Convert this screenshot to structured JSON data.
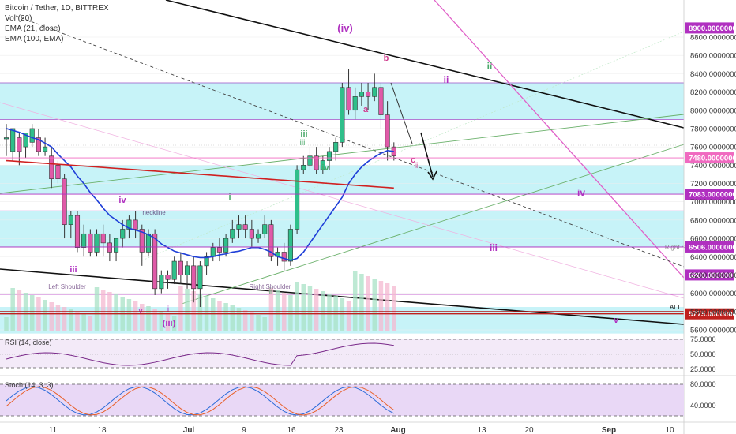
{
  "header": {
    "symbol": "Bitcoin / Tether, 1D, BITTREX",
    "lines": [
      "Vol (20)",
      "EMA (21, close)",
      "EMA (100, EMA)"
    ]
  },
  "chart_data": {
    "type": "candlestick",
    "x_ticks": [
      "11",
      "18",
      "Jul",
      "9",
      "16",
      "23",
      "Aug",
      "13",
      "20",
      "Sep",
      "10"
    ],
    "y_ticks": [
      5600,
      5800,
      6000,
      6200,
      6400,
      6600,
      6800,
      7000,
      7200,
      7400,
      7600,
      7800,
      8000,
      8200,
      8400,
      8600,
      8800
    ],
    "ylim": [
      5560,
      9000
    ],
    "highlight_levels": [
      {
        "value": 8900,
        "label": "8900.00000000",
        "color": "#b030c0"
      },
      {
        "value": 7480,
        "label": "7480.00000000",
        "color": "#f06ac0"
      },
      {
        "value": 7083,
        "label": "7083.00000000",
        "color": "#b030c0"
      },
      {
        "value": 6506,
        "label": "6506.00000000",
        "color": "#b030c0"
      },
      {
        "value": 6200,
        "label": "6200.00000000",
        "color": "#b030c0"
      },
      {
        "value": 5775,
        "label": "5775.00000000",
        "color": "#c0201e"
      }
    ],
    "candles": [
      [
        7700,
        7850,
        7700,
        7500
      ],
      [
        7550,
        7700,
        7800,
        7450
      ],
      [
        7700,
        7750,
        7550,
        7400
      ],
      [
        7600,
        7700,
        7750,
        7480
      ],
      [
        7650,
        7850,
        7800,
        7600
      ],
      [
        7700,
        7800,
        7550,
        7500
      ],
      [
        7550,
        7700,
        7600,
        7500
      ],
      [
        7500,
        7600,
        7250,
        7150
      ],
      [
        7400,
        7450,
        7250,
        7200
      ],
      [
        7250,
        7300,
        6750,
        6600
      ],
      [
        6750,
        6900,
        6850,
        6600
      ],
      [
        6850,
        6900,
        6500,
        6450
      ],
      [
        6500,
        6750,
        6650,
        6400
      ],
      [
        6650,
        6700,
        6450,
        6400
      ],
      [
        6450,
        6700,
        6650,
        6400
      ],
      [
        6650,
        6750,
        6550,
        6400
      ],
      [
        6550,
        6650,
        6450,
        6350
      ],
      [
        6450,
        6600,
        6600,
        6350
      ],
      [
        6600,
        6800,
        6700,
        6500
      ],
      [
        6700,
        6850,
        6800,
        6600
      ],
      [
        6800,
        6900,
        6700,
        6600
      ],
      [
        6700,
        6750,
        6450,
        6300
      ],
      [
        6450,
        6700,
        6650,
        6400
      ],
      [
        6650,
        6700,
        6050,
        5980
      ],
      [
        6050,
        6250,
        6200,
        6000
      ],
      [
        6200,
        6250,
        6150,
        6050
      ],
      [
        6150,
        6400,
        6350,
        6100
      ],
      [
        6350,
        6450,
        6200,
        6100
      ],
      [
        6200,
        6350,
        6300,
        6050
      ],
      [
        6300,
        6400,
        6050,
        5900
      ],
      [
        6050,
        6350,
        6300,
        5850
      ],
      [
        6300,
        6450,
        6400,
        6200
      ],
      [
        6400,
        6550,
        6500,
        6350
      ],
      [
        6500,
        6600,
        6450,
        6350
      ],
      [
        6450,
        6650,
        6600,
        6400
      ],
      [
        6600,
        6800,
        6700,
        6550
      ],
      [
        6700,
        6850,
        6750,
        6600
      ],
      [
        6750,
        6850,
        6700,
        6600
      ],
      [
        6700,
        6800,
        6600,
        6500
      ],
      [
        6600,
        6700,
        6650,
        6550
      ],
      [
        6650,
        6850,
        6750,
        6600
      ],
      [
        6750,
        6800,
        6400,
        6350
      ],
      [
        6400,
        6500,
        6450,
        6300
      ],
      [
        6450,
        6550,
        6350,
        6250
      ],
      [
        6350,
        6750,
        6700,
        6300
      ],
      [
        6700,
        7400,
        7350,
        6650
      ],
      [
        7350,
        7500,
        7400,
        7300
      ],
      [
        7400,
        7600,
        7500,
        7350
      ],
      [
        7500,
        7600,
        7350,
        7300
      ],
      [
        7350,
        7500,
        7450,
        7300
      ],
      [
        7450,
        7600,
        7550,
        7350
      ],
      [
        7550,
        7700,
        7650,
        7450
      ],
      [
        7650,
        8300,
        8250,
        7600
      ],
      [
        8250,
        8450,
        8000,
        7950
      ],
      [
        8000,
        8250,
        8150,
        7900
      ],
      [
        8150,
        8300,
        8200,
        8050
      ],
      [
        8200,
        8300,
        8150,
        8000
      ],
      [
        8150,
        8400,
        8250,
        8100
      ],
      [
        8250,
        8300,
        7950,
        7800
      ],
      [
        7950,
        8100,
        7600,
        7450
      ],
      [
        7600,
        7650,
        7500,
        7450
      ]
    ],
    "ema21": [
      7800,
      7780,
      7760,
      7730,
      7700,
      7680,
      7640,
      7600,
      7520,
      7450,
      7380,
      7280,
      7200,
      7100,
      7020,
      6930,
      6850,
      6800,
      6750,
      6710,
      6690,
      6670,
      6640,
      6600,
      6540,
      6500,
      6460,
      6440,
      6420,
      6400,
      6390,
      6390,
      6400,
      6420,
      6430,
      6450,
      6460,
      6480,
      6500,
      6500,
      6480,
      6450,
      6400,
      6380,
      6360,
      6380,
      6450,
      6550,
      6650,
      6750,
      6850,
      6950,
      7050,
      7200,
      7300,
      7380,
      7440,
      7490,
      7530,
      7560,
      7550
    ],
    "ema100": [
      7450,
      7445,
      7440,
      7435,
      7430,
      7425,
      7420,
      7415,
      7410,
      7405,
      7400,
      7395,
      7390,
      7385,
      7380,
      7375,
      7370,
      7365,
      7360,
      7355,
      7350,
      7345,
      7340,
      7335,
      7330,
      7325,
      7320,
      7315,
      7310,
      7305,
      7300,
      7295,
      7290,
      7285,
      7280,
      7275,
      7270,
      7265,
      7260,
      7255,
      7250,
      7245,
      7240,
      7235,
      7230,
      7225,
      7220,
      7215,
      7210,
      7205,
      7200,
      7195,
      7190,
      7185,
      7180,
      7175,
      7170,
      7165,
      7160,
      7155,
      7150
    ],
    "labels": [
      "(iv)",
      "ii",
      "ii",
      "b",
      "a",
      "c",
      "iv",
      "iv",
      "iii",
      "iv",
      "i",
      "iii",
      "iii",
      "ii",
      "v",
      "(iii)",
      "i",
      "ii",
      "iii",
      "v",
      "Left Shoulder",
      "Right Shoulder",
      "neckline",
      "Right S",
      "ALT"
    ],
    "rsi": {
      "title": "RSI (14, close)",
      "ticks": [
        "75.0000",
        "50.0000",
        "25.0000"
      ]
    },
    "stoch": {
      "title": "Stoch (14, 3, 3)",
      "ticks": [
        "80.0000",
        "40.0000"
      ]
    }
  }
}
